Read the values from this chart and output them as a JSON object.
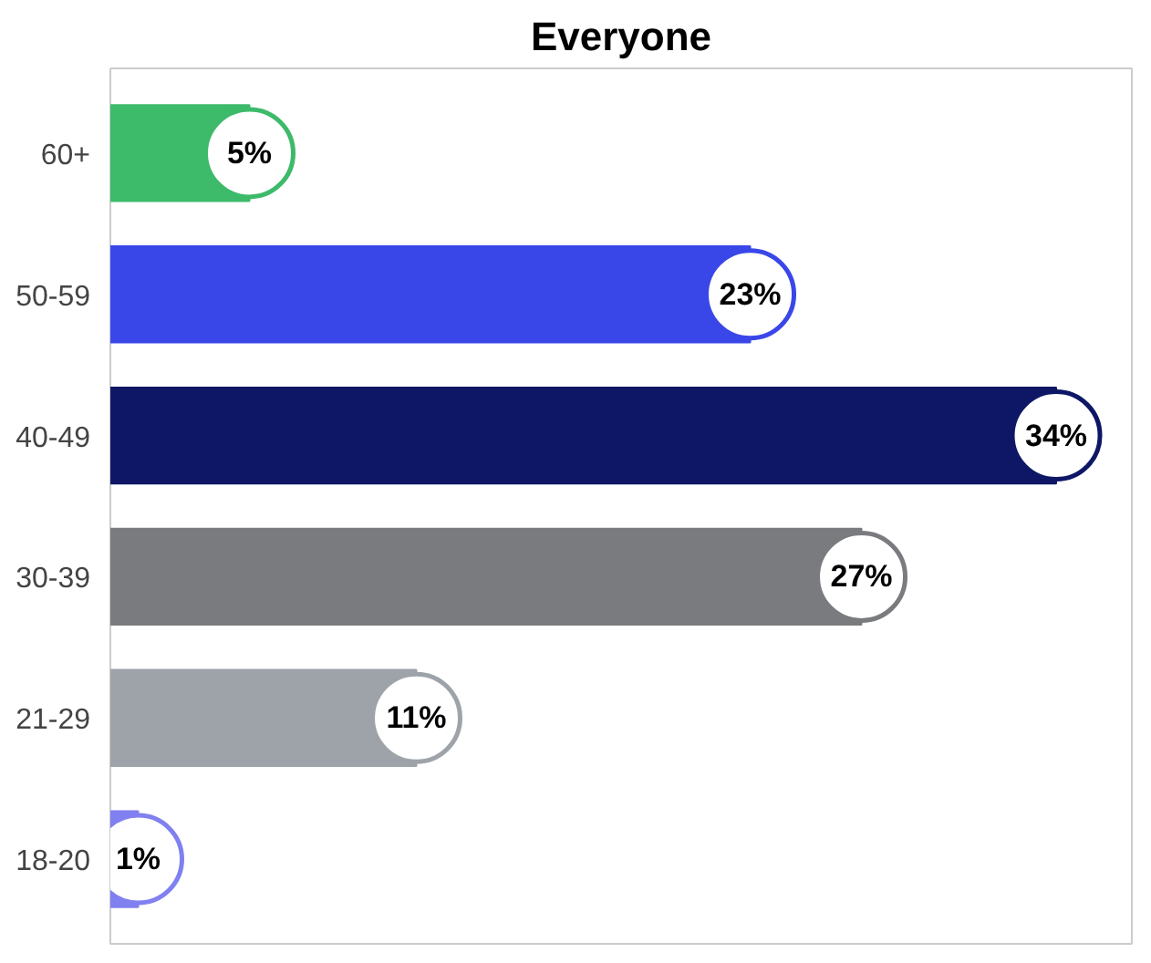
{
  "chart_data": {
    "type": "bar",
    "orientation": "horizontal",
    "title": "Everyone",
    "categories": [
      "60+",
      "50-59",
      "40-49",
      "30-39",
      "21-29",
      "18-20"
    ],
    "values": [
      5,
      23,
      34,
      27,
      11,
      1
    ],
    "colors": [
      "#3dba6a",
      "#3a47e8",
      "#0e1766",
      "#7a7b7e",
      "#9ea3a9",
      "#8080f0"
    ],
    "value_labels": [
      "5%",
      "23%",
      "34%",
      "27%",
      "11%",
      "1%"
    ],
    "grid": false
  }
}
